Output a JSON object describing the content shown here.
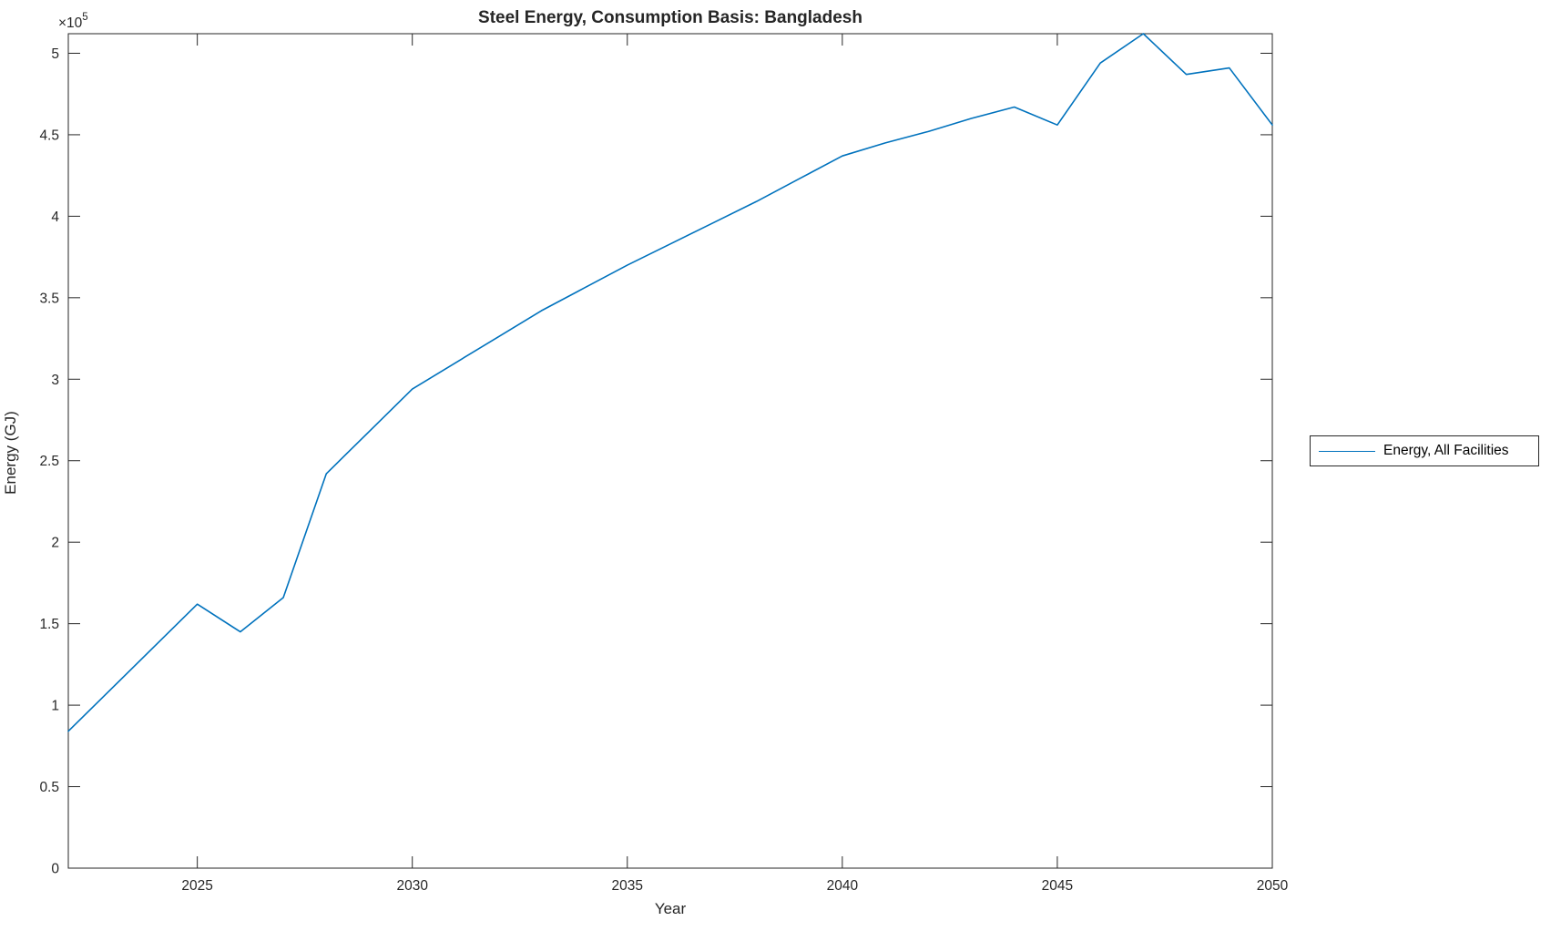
{
  "figure": {
    "title": "Steel Energy, Consumption Basis: Bangladesh",
    "xlabel": "Year",
    "ylabel": "Energy (GJ)",
    "y_multiplier_base": "×10",
    "y_multiplier_exponent": "5",
    "background_color": "#ffffff",
    "axis_color": "#262626",
    "title_color": "#000000"
  },
  "legend": {
    "position": "right-outside",
    "entries": [
      {
        "label": "Energy, All Facilities",
        "color": "#0072BD",
        "line_style": "solid"
      }
    ]
  },
  "chart_data": {
    "type": "line",
    "title": "Steel Energy, Consumption Basis: Bangladesh",
    "xlabel": "Year",
    "ylabel": "Energy (GJ)",
    "xlim": [
      2022,
      2050
    ],
    "ylim": [
      0,
      512000
    ],
    "xticks": [
      2025,
      2030,
      2035,
      2040,
      2045,
      2050
    ],
    "xtick_labels": [
      "2025",
      "2030",
      "2035",
      "2040",
      "2045",
      "2050"
    ],
    "yticks": [
      0,
      50000,
      100000,
      150000,
      200000,
      250000,
      300000,
      350000,
      400000,
      450000,
      500000
    ],
    "ytick_labels": [
      "0",
      "0.5",
      "1",
      "1.5",
      "2",
      "2.5",
      "3",
      "3.5",
      "4",
      "4.5",
      "5"
    ],
    "grid": false,
    "box": true,
    "tick_direction": "in",
    "legend_position": "right-outside",
    "series": [
      {
        "name": "Energy, All Facilities",
        "color": "#0072BD",
        "x": [
          2022,
          2023,
          2024,
          2025,
          2026,
          2027,
          2028,
          2029,
          2030,
          2031,
          2032,
          2033,
          2034,
          2035,
          2036,
          2037,
          2038,
          2039,
          2040,
          2041,
          2042,
          2043,
          2044,
          2045,
          2046,
          2047,
          2048,
          2049,
          2050
        ],
        "y": [
          84000,
          110000,
          136000,
          162000,
          145000,
          166000,
          242000,
          268000,
          294000,
          310000,
          326000,
          342000,
          356000,
          370000,
          383000,
          396000,
          409000,
          423000,
          437000,
          445000,
          452000,
          460000,
          467000,
          456000,
          494000,
          512000,
          487000,
          491000,
          456000
        ]
      }
    ]
  }
}
